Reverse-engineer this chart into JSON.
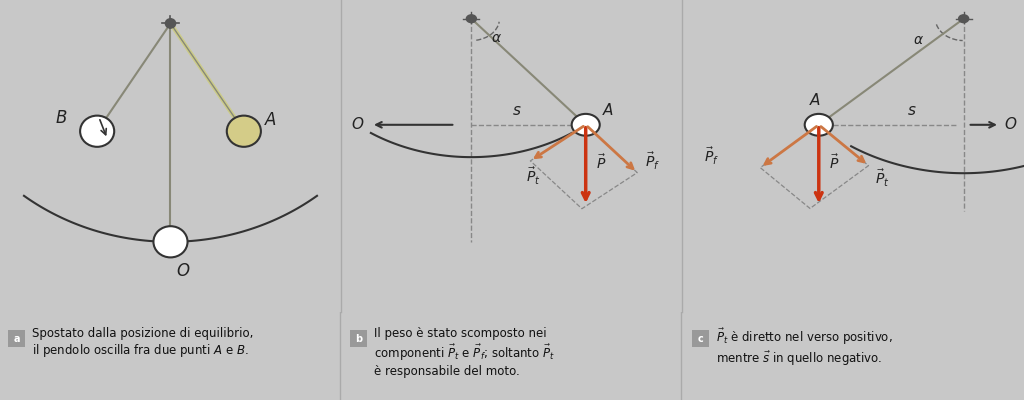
{
  "bg_color": "#c8c8c8",
  "panel_bg": "#d0d0d4",
  "divider_color": "#888888",
  "caption_bg": "#999999",
  "caption_fg": "#ffffff",
  "panel_a_caption": "a",
  "panel_b_caption": "b",
  "panel_c_caption": "c",
  "text_a": "Spostato dalla posizione di equilibrio,\nil pendolo oscilla fra due punti $A$ e $B$.",
  "text_b": "Il peso è stato scomposto nei\ncomponenti $\\vec{P}_t$ e $\\vec{P}_f$; soltanto $\\vec{P}_t$\nè responsabile del moto.",
  "text_c": "$\\vec{P}_t$ è diretto nel verso positivo,\nmentre $\\vec{s}$ in quello negativo.",
  "pivot_color": "#555555",
  "string_color": "#888877",
  "string_color2": "#cccc88",
  "bob_color": "#ffffff",
  "bob_edge": "#333333",
  "bob_a_color": "#d4cc88",
  "arc_color": "#333333",
  "arrow_color": "#cc3311",
  "arrow_tan_color": "#cc7744",
  "dashed_color": "#888888",
  "axis_color": "#333333",
  "label_color": "#222222"
}
